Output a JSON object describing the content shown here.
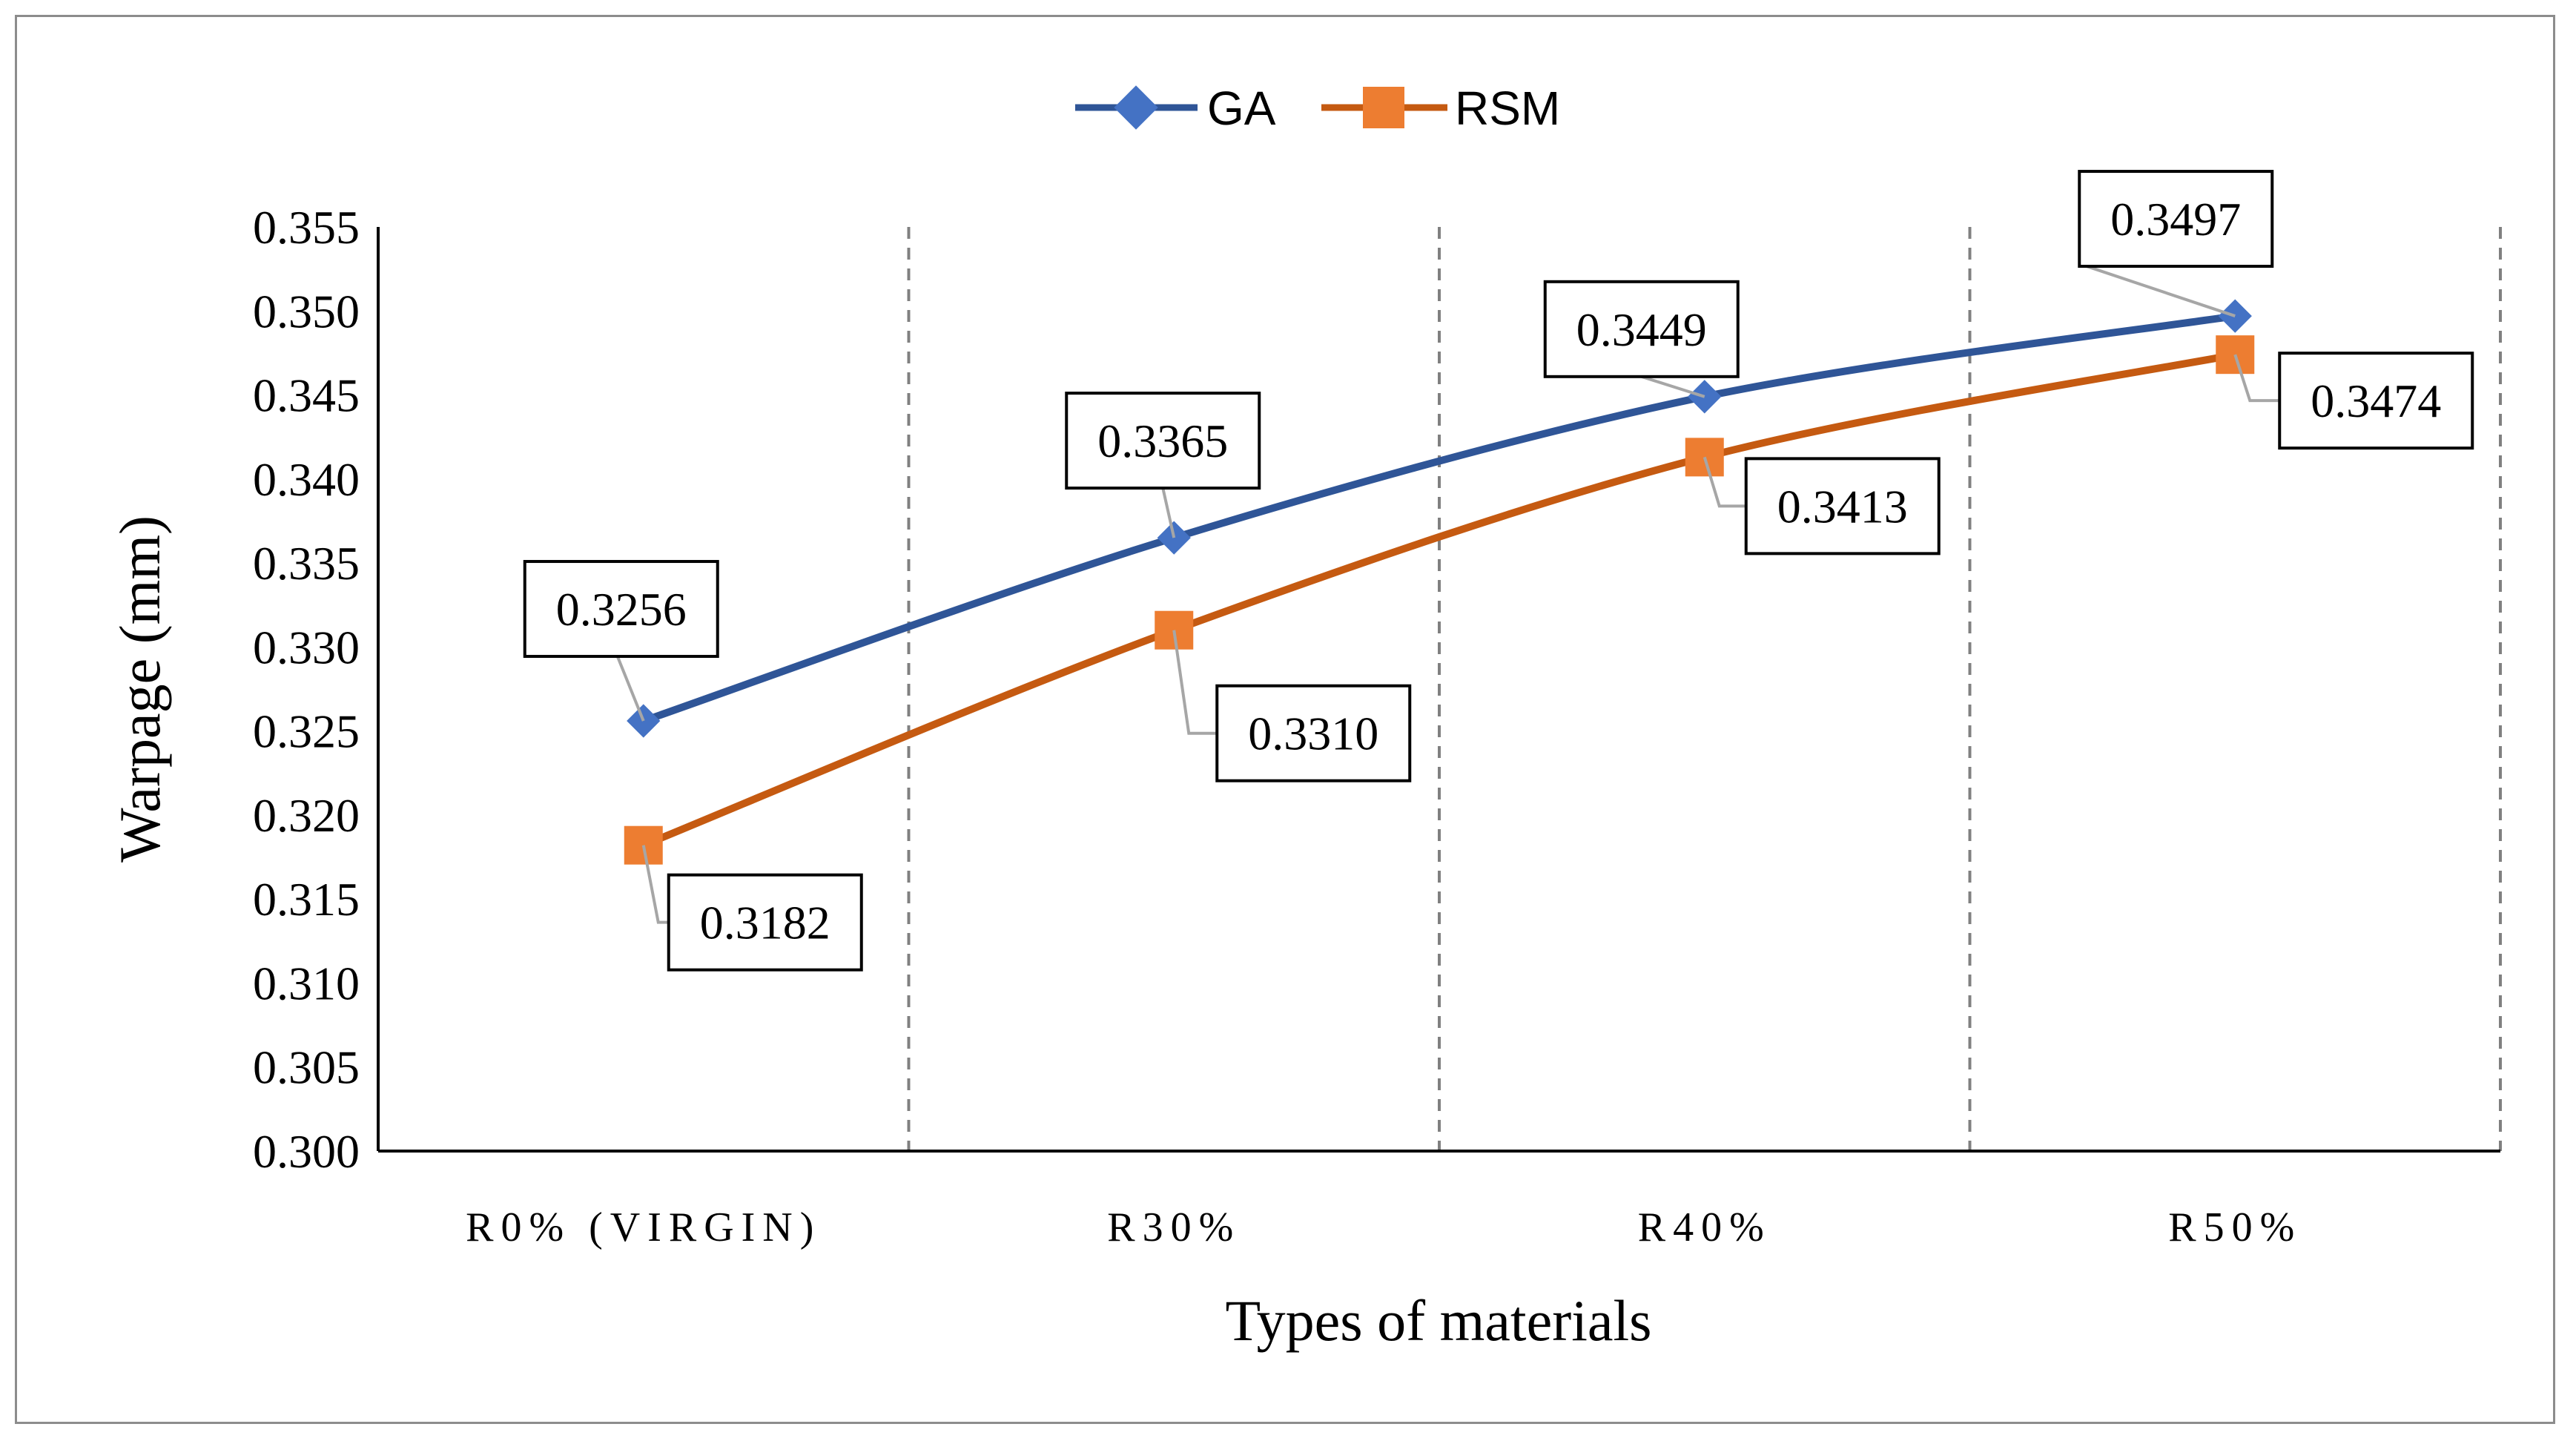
{
  "chart_data": {
    "type": "line",
    "categories": [
      "R0% (VIRGIN)",
      "R30%",
      "R40%",
      "R50%"
    ],
    "series": [
      {
        "name": "GA",
        "values": [
          0.3256,
          0.3365,
          0.3449,
          0.3497
        ],
        "labels": [
          "0.3256",
          "0.3365",
          "0.3449",
          "0.3497"
        ],
        "color": "#2F5597",
        "marker": "diamond",
        "marker_color": "#4472C4"
      },
      {
        "name": "RSM",
        "values": [
          0.3182,
          0.331,
          0.3413,
          0.3474
        ],
        "labels": [
          "0.3182",
          "0.3310",
          "0.3413",
          "0.3474"
        ],
        "color": "#C55A11",
        "marker": "square",
        "marker_color": "#ED7D31"
      }
    ],
    "title": "",
    "xlabel": "Types of materials",
    "ylabel": "Warpage (mm)",
    "ylim": [
      0.3,
      0.355
    ],
    "yticks": [
      "0.300",
      "0.305",
      "0.310",
      "0.315",
      "0.320",
      "0.325",
      "0.330",
      "0.335",
      "0.340",
      "0.345",
      "0.350",
      "0.355"
    ],
    "legend_position": "top-center",
    "grid": "vertical dashed category separators"
  }
}
